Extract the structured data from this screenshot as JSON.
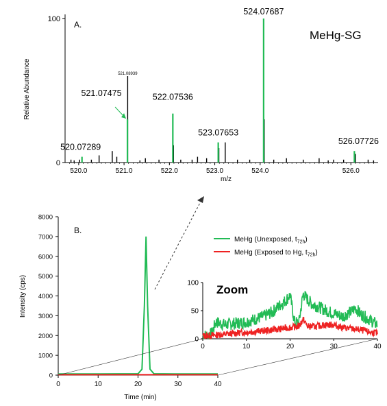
{
  "chart_data": [
    {
      "panel": "A.",
      "type": "bar",
      "title": "MeHg-SG",
      "xlabel": "m/z",
      "ylabel": "Relative Abundance",
      "xlim": [
        519.7,
        526.6
      ],
      "ylim": [
        0,
        100
      ],
      "x_ticks": [
        "520.0",
        "521.0",
        "522.0",
        "523.0",
        "524.0",
        "526.0"
      ],
      "y_ticks": [
        "0",
        "100"
      ],
      "colors": {
        "labeled": "#22bb55",
        "other": "#000000"
      },
      "labeled_peaks": [
        {
          "x": 520.07289,
          "y": 4,
          "label": "520.07289"
        },
        {
          "x": 521.07475,
          "y": 30,
          "label": "521.07475"
        },
        {
          "x": 522.07536,
          "y": 34,
          "label": "522.07536"
        },
        {
          "x": 523.07653,
          "y": 14,
          "label": "523.07653"
        },
        {
          "x": 524.07687,
          "y": 100,
          "label": "524.07687"
        },
        {
          "x": 526.07726,
          "y": 8,
          "label": "526.07726"
        }
      ],
      "other_peaks": [
        {
          "x": 519.83,
          "y": 2
        },
        {
          "x": 519.9,
          "y": 1.5
        },
        {
          "x": 520.02,
          "y": 2
        },
        {
          "x": 520.28,
          "y": 2
        },
        {
          "x": 520.45,
          "y": 5
        },
        {
          "x": 520.74,
          "y": 8
        },
        {
          "x": 520.84,
          "y": 4
        },
        {
          "x": 521.08,
          "y": 60,
          "label": "521.08939"
        },
        {
          "x": 521.35,
          "y": 1.5
        },
        {
          "x": 521.47,
          "y": 3
        },
        {
          "x": 521.77,
          "y": 2
        },
        {
          "x": 522.09,
          "y": 12
        },
        {
          "x": 522.25,
          "y": 2
        },
        {
          "x": 522.5,
          "y": 2
        },
        {
          "x": 522.62,
          "y": 4
        },
        {
          "x": 522.82,
          "y": 3
        },
        {
          "x": 523.09,
          "y": 10
        },
        {
          "x": 523.23,
          "y": 14
        },
        {
          "x": 523.5,
          "y": 2
        },
        {
          "x": 523.77,
          "y": 2
        },
        {
          "x": 524.09,
          "y": 30
        },
        {
          "x": 524.3,
          "y": 2
        },
        {
          "x": 524.58,
          "y": 3
        },
        {
          "x": 524.95,
          "y": 2
        },
        {
          "x": 525.3,
          "y": 3
        },
        {
          "x": 525.5,
          "y": 1.5
        },
        {
          "x": 525.62,
          "y": 2
        },
        {
          "x": 525.84,
          "y": 2
        },
        {
          "x": 526.1,
          "y": 6
        },
        {
          "x": 526.38,
          "y": 2
        },
        {
          "x": 526.5,
          "y": 1.5
        }
      ]
    },
    {
      "panel": "B.",
      "type": "line",
      "xlabel": "Time (min)",
      "ylabel": "Intensity (cps)",
      "xlim": [
        0,
        40
      ],
      "ylim": [
        0,
        8000
      ],
      "x_ticks": [
        "0",
        "10",
        "20",
        "30",
        "40"
      ],
      "y_ticks": [
        "0",
        "1000",
        "2000",
        "3000",
        "4000",
        "5000",
        "6000",
        "7000",
        "8000"
      ],
      "series": [
        {
          "name": "MeHg (Unexposed, t",
          "sub": "72h",
          "suffix": ")",
          "color": "#22bb55",
          "x": [
            0,
            10,
            20,
            21,
            21.6,
            22,
            22.4,
            23,
            24,
            30,
            40
          ],
          "y": [
            60,
            60,
            70,
            300,
            3500,
            7000,
            3500,
            300,
            70,
            60,
            60
          ]
        },
        {
          "name": "MeHg (Exposed to Hg, t",
          "sub": "72h",
          "suffix": ")",
          "color": "#ee2222",
          "x": [
            0,
            40
          ],
          "y": [
            20,
            20
          ]
        }
      ],
      "inset": {
        "title": "Zoom",
        "xlim": [
          0,
          40
        ],
        "ylim": [
          0,
          100
        ],
        "x_ticks": [
          "0",
          "10",
          "20",
          "30",
          "40"
        ],
        "y_ticks": [
          "0",
          "50",
          "100"
        ],
        "green": {
          "x": [
            0,
            2,
            3,
            5,
            8,
            10,
            12,
            14,
            16,
            17,
            18,
            19,
            20,
            21,
            22,
            23,
            24,
            25,
            27,
            29,
            30,
            32,
            34,
            35,
            36,
            38,
            40
          ],
          "y": [
            5,
            8,
            30,
            25,
            28,
            30,
            35,
            40,
            48,
            55,
            62,
            68,
            78,
            30,
            28,
            80,
            70,
            62,
            55,
            48,
            45,
            40,
            48,
            55,
            45,
            35,
            25
          ]
        },
        "red": {
          "x": [
            0,
            5,
            10,
            15,
            20,
            22,
            23,
            24,
            26,
            28,
            30,
            32,
            34,
            36,
            38,
            40
          ],
          "y": [
            5,
            8,
            12,
            15,
            20,
            22,
            35,
            22,
            22,
            25,
            25,
            20,
            18,
            16,
            12,
            10
          ]
        }
      }
    }
  ]
}
